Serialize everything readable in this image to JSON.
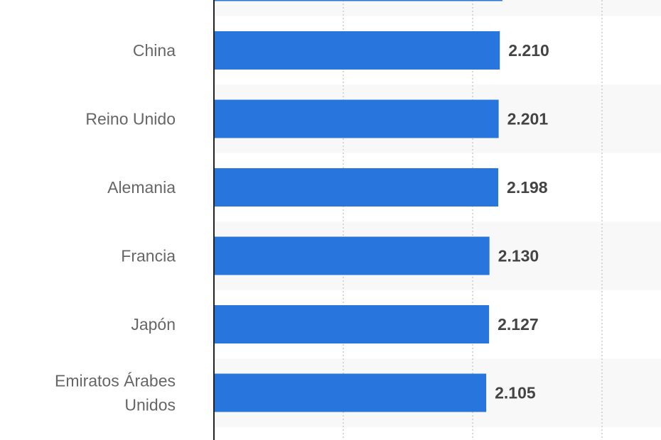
{
  "chart_data": {
    "type": "bar",
    "orientation": "horizontal",
    "categories": [
      [
        "China"
      ],
      [
        "Reino Unido"
      ],
      [
        "Alemania"
      ],
      [
        "Francia"
      ],
      [
        "Japón"
      ],
      [
        "Emiratos Árabes",
        "Unidos"
      ]
    ],
    "values": [
      2.21,
      2.201,
      2.198,
      2.13,
      2.127,
      2.105
    ],
    "value_labels": [
      "2.210",
      "2.201",
      "2.198",
      "2.130",
      "2.127",
      "2.105"
    ],
    "partial_top_bar_value": 2.23,
    "xlim": [
      0,
      3
    ],
    "grid": "vertical dotted",
    "bar_color": "#2876DD",
    "band_color": "#F8F8F8",
    "axis_color": "#222222"
  }
}
